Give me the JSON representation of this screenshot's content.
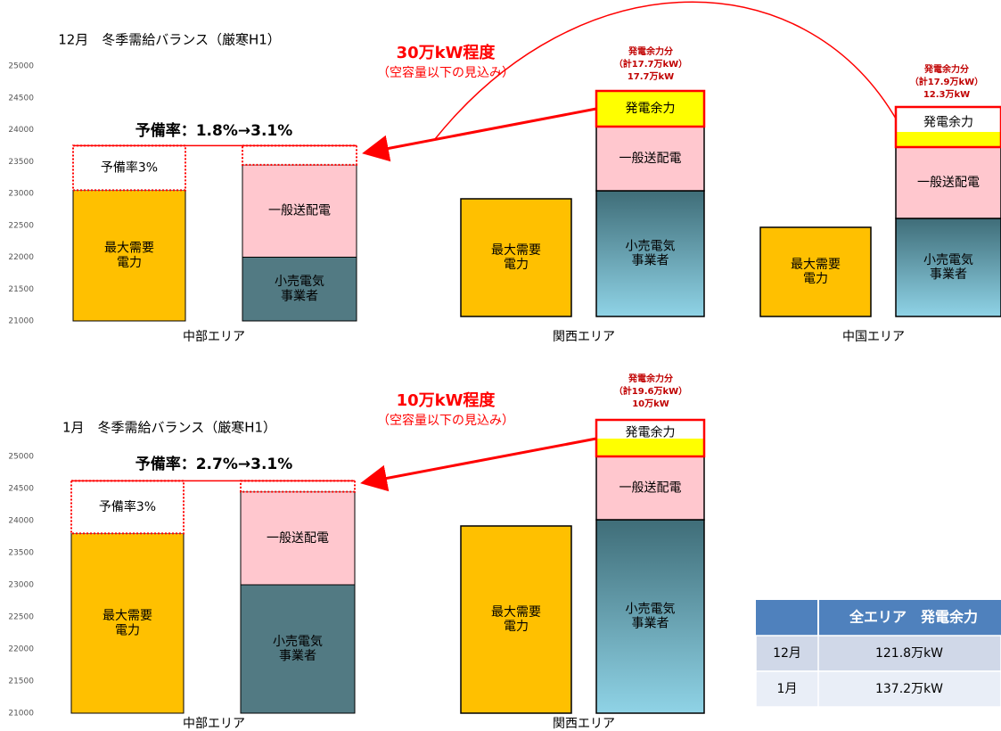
{
  "chart_data": [
    {
      "type": "stacked-bar",
      "title": "12月　冬季需給バランス（厳寒H1）",
      "xlabel": "中部エリア",
      "annotation": "予備率：1.8%→3.1%",
      "ylim": [
        21000,
        25000
      ],
      "yticks": [
        21000,
        21500,
        22000,
        22500,
        23000,
        23500,
        24000,
        24500,
        25000
      ],
      "bars": [
        {
          "segments": [
            {
              "name": "最大需要\n電力",
              "value": 23050,
              "color": "#ffc000"
            },
            {
              "name": "予備率3%",
              "value": 700,
              "color": "#ffffff",
              "border": "dashed"
            }
          ]
        },
        {
          "segments": [
            {
              "name": "小売電気\n事業者",
              "value": 22000,
              "color": "#527a83"
            },
            {
              "name": "一般送配電",
              "value": 1450,
              "color": "#ffc7ce"
            },
            {
              "value": 300,
              "color": "#ffffff",
              "border": "dashed"
            }
          ]
        }
      ]
    },
    {
      "type": "stacked-bar",
      "title": "1月　冬季需給バランス（厳寒H1）",
      "xlabel": "中部エリア",
      "annotation": "予備率：2.7%→3.1%",
      "ylim": [
        21000,
        25000
      ],
      "yticks": [
        21000,
        21500,
        22000,
        22500,
        23000,
        23500,
        24000,
        24500,
        25000
      ],
      "bars": [
        {
          "segments": [
            {
              "name": "最大需要\n電力",
              "value": 23800,
              "color": "#ffc000"
            },
            {
              "name": "予備率3%",
              "value": 820,
              "color": "#ffffff",
              "border": "dashed"
            }
          ]
        },
        {
          "segments": [
            {
              "name": "小売電気\n事業者",
              "value": 23000,
              "color": "#527a83"
            },
            {
              "name": "一般送配電",
              "value": 1450,
              "color": "#ffc7ce"
            },
            {
              "value": 170,
              "color": "#ffffff",
              "border": "dashed"
            }
          ]
        }
      ]
    }
  ],
  "callouts": [
    {
      "headline": "30万kW程度",
      "note": "（空容量以下の見込み）"
    },
    {
      "headline": "10万kW程度",
      "note": "（空容量以下の見込み）"
    }
  ],
  "areas": [
    {
      "label": "関西エリア",
      "demand": "最大需要\n電力",
      "retail": "小売電気\n事業者",
      "general": "一般送配電",
      "surplus": "発電余力",
      "surplus_note": [
        "発電余力分",
        "（計17.7万kW）",
        "17.7万kW"
      ]
    },
    {
      "label": "中国エリア",
      "demand": "最大需要\n電力",
      "retail": "小売電気\n事業者",
      "general": "一般送配電",
      "surplus": "発電余力",
      "surplus_note": [
        "発電余力分",
        "（計17.9万kW）",
        "12.3万kW"
      ]
    },
    {
      "label": "関西エリア",
      "demand": "最大需要\n電力",
      "retail": "小売電気\n事業者",
      "general": "一般送配電",
      "surplus": "発電余力",
      "surplus_note": [
        "発電余力分",
        "（計19.6万kW）",
        "10万kW"
      ]
    }
  ],
  "table": {
    "header": "全エリア　発電余力",
    "rows": [
      [
        "12月",
        "121.8万kW"
      ],
      [
        "1月",
        "137.2万kW"
      ]
    ]
  }
}
